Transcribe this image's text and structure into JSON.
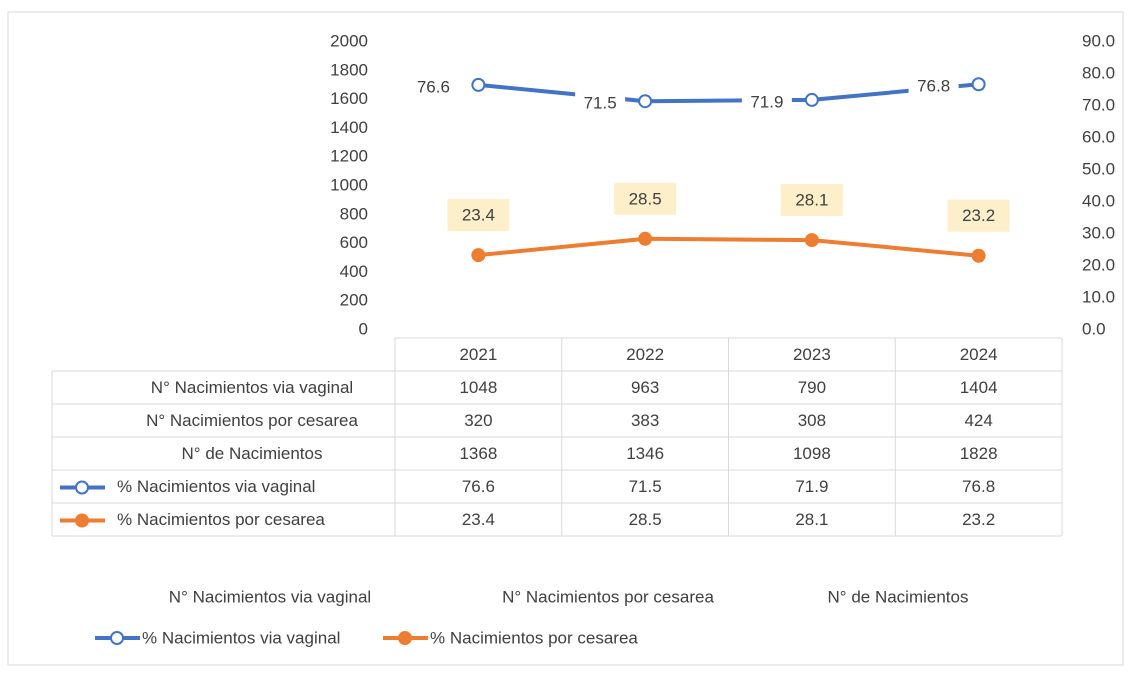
{
  "chart_data": {
    "type": "line",
    "categories": [
      "2021",
      "2022",
      "2023",
      "2024"
    ],
    "series": [
      {
        "name": "N° Nacimientos via vaginal",
        "values": [
          1048,
          963,
          790,
          1404
        ]
      },
      {
        "name": "N° Nacimientos por cesarea",
        "values": [
          320,
          383,
          308,
          424
        ]
      },
      {
        "name": "N° de Nacimientos",
        "values": [
          1368,
          1346,
          1098,
          1828
        ]
      },
      {
        "name": "% Nacimientos via vaginal",
        "color": "#4472c4",
        "marker": "hollow",
        "axis": "y2",
        "values": [
          76.6,
          71.5,
          71.9,
          76.8
        ]
      },
      {
        "name": "% Nacimientos por cesarea",
        "color": "#ed7d31",
        "marker": "filled",
        "axis": "y2",
        "values": [
          23.4,
          28.5,
          28.1,
          23.2
        ]
      }
    ],
    "ylim": [
      0,
      2000
    ],
    "yticks": [
      0,
      200,
      400,
      600,
      800,
      1000,
      1200,
      1400,
      1600,
      1800,
      2000
    ],
    "y2lim": [
      0,
      90
    ],
    "y2ticks": [
      {
        "value": 0,
        "label": "0.0"
      },
      {
        "value": 10,
        "label": "10.0"
      },
      {
        "value": 20,
        "label": "20.0"
      },
      {
        "value": 30,
        "label": "30.0"
      },
      {
        "value": 40,
        "label": "40.0"
      },
      {
        "value": 50,
        "label": "50.0"
      },
      {
        "value": 60,
        "label": "60.0"
      },
      {
        "value": 70,
        "label": "70.0"
      },
      {
        "value": 80,
        "label": "80.0"
      },
      {
        "value": 90,
        "label": "90.0"
      }
    ],
    "data_table": true,
    "legend": "bottom"
  }
}
